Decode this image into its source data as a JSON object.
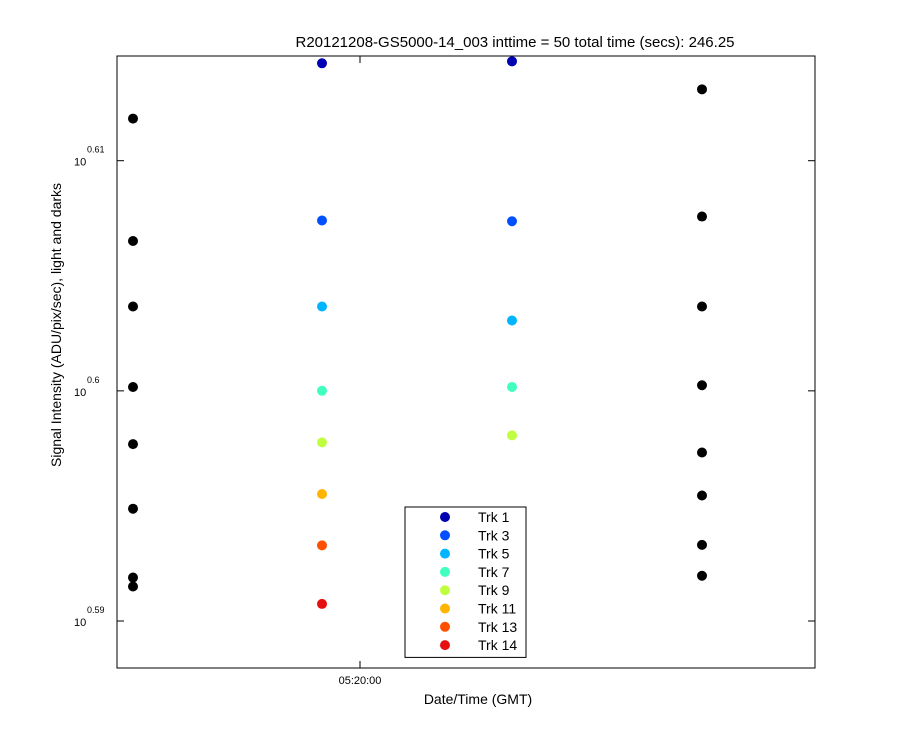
{
  "chart_data": {
    "type": "scatter",
    "title": "R20121208-GS5000-14_003 inttime = 50 total time (secs): 246.25",
    "xlabel": "Date/Time (GMT)",
    "ylabel": "Signal Intensity (ADU/pix/sec), light and darks",
    "yscale": "log",
    "ylim": [
      3.8722,
      4.1167
    ],
    "x_ticks": [
      {
        "x": "05:20:00",
        "label": "05:20:00"
      }
    ],
    "x_order": [
      "dark-1",
      "05:19:56",
      "light-2",
      "dark-2"
    ],
    "y_ticks": [
      {
        "exponent": "0.59",
        "base": "10"
      },
      {
        "exponent": "0.6",
        "base": "10"
      },
      {
        "exponent": "0.61",
        "base": "10"
      }
    ],
    "grid": false,
    "legend_position": "bottom-center",
    "series": [
      {
        "name": "Trk 1",
        "color": "#0000b3",
        "values": [
          4.1137,
          4.1145
        ]
      },
      {
        "name": "Trk 3",
        "color": "#0050ff",
        "values": [
          4.0495,
          4.0492
        ]
      },
      {
        "name": "Trk 5",
        "color": "#00b4ff",
        "values": [
          4.0148,
          4.0092
        ]
      },
      {
        "name": "Trk 7",
        "color": "#40ffbf",
        "values": [
          3.9811,
          3.9826
        ]
      },
      {
        "name": "Trk 9",
        "color": "#c0ff40",
        "values": [
          3.9606,
          3.9634
        ]
      },
      {
        "name": "Trk 11",
        "color": "#ffb400",
        "values": [
          3.9402,
          null
        ]
      },
      {
        "name": "Trk 13",
        "color": "#ff5000",
        "values": [
          3.92,
          null
        ]
      },
      {
        "name": "Trk 14",
        "color": "#e61010",
        "values": [
          3.8971,
          null
        ]
      }
    ],
    "darks": {
      "color": "#000000",
      "dark_1": [
        4.091,
        4.0412,
        4.0148,
        3.9826,
        3.9599,
        3.9344,
        3.9074,
        3.9039
      ],
      "dark_2": [
        4.103,
        4.0511,
        4.0148,
        3.9833,
        3.9566,
        3.9396,
        3.9202,
        3.9081
      ]
    }
  }
}
